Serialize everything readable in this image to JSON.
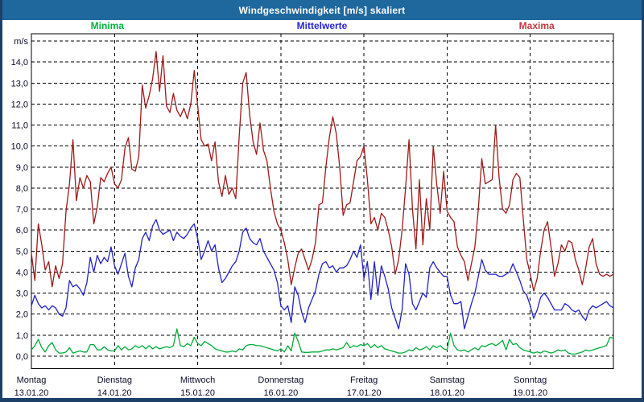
{
  "window": {
    "title": "Windgeschwindigkeit [m/s] skaliert"
  },
  "colors": {
    "titlebar_bg": "#1f689e",
    "window_border": "#1d4069",
    "plot_frame": "#000000",
    "grid": "#000000",
    "axis_text": "#0a0a28",
    "background": "#ffffff"
  },
  "legend": {
    "items": [
      {
        "label": "Minima",
        "color": "#00b33c"
      },
      {
        "label": "Mittelwerte",
        "color": "#2626d2"
      },
      {
        "label": "Maxima",
        "color": "#c23a46"
      }
    ]
  },
  "chart_data": {
    "type": "line",
    "title": "Windgeschwindigkeit [m/s] skaliert",
    "ylabel": "m/s",
    "grid": true,
    "legend_position": "top",
    "ylim": [
      -0.6,
      15.35
    ],
    "x_hours_total": 168,
    "y_axis": {
      "unit_label": "m/s",
      "grid_values": [
        0,
        1,
        2,
        3,
        4,
        5,
        6,
        7,
        8,
        9,
        10,
        11,
        12,
        13,
        14,
        15
      ],
      "ticks": [
        {
          "v": 0,
          "label": "0,0"
        },
        {
          "v": 1,
          "label": "1,0"
        },
        {
          "v": 2,
          "label": "2,0"
        },
        {
          "v": 3,
          "label": "3,0"
        },
        {
          "v": 4,
          "label": "4,0"
        },
        {
          "v": 5,
          "label": "5,0"
        },
        {
          "v": 6,
          "label": "6,0"
        },
        {
          "v": 7,
          "label": "7,0"
        },
        {
          "v": 8,
          "label": "8,0"
        },
        {
          "v": 9,
          "label": "9,0"
        },
        {
          "v": 10,
          "label": "10,0"
        },
        {
          "v": 11,
          "label": "11,0"
        },
        {
          "v": 12,
          "label": "12,0"
        },
        {
          "v": 13,
          "label": "13,0"
        },
        {
          "v": 14,
          "label": "14,0"
        }
      ]
    },
    "x_axis": {
      "days": [
        {
          "weekday": "Montag",
          "date": "13.01.20"
        },
        {
          "weekday": "Dienstag",
          "date": "14.01.20"
        },
        {
          "weekday": "Mittwoch",
          "date": "15.01.20"
        },
        {
          "weekday": "Donnerstag",
          "date": "16.01.20"
        },
        {
          "weekday": "Freitag",
          "date": "17.01.20"
        },
        {
          "weekday": "Samstag",
          "date": "18.01.20"
        },
        {
          "weekday": "Sonntag",
          "date": "19.01.20"
        }
      ]
    },
    "series": [
      {
        "name": "Maxima",
        "color": "#9e1a1a",
        "values": [
          4.9,
          3.6,
          6.3,
          5.3,
          4.1,
          4.5,
          3.3,
          4.3,
          3.7,
          4.4,
          6.9,
          8.2,
          10.3,
          7.4,
          8.5,
          8.0,
          8.6,
          8.3,
          6.3,
          7.1,
          8.5,
          8.3,
          8.7,
          9.0,
          8.2,
          8.0,
          8.4,
          9.9,
          10.4,
          8.9,
          8.8,
          9.5,
          12.9,
          11.8,
          12.4,
          13.2,
          14.5,
          12.6,
          14.3,
          11.9,
          11.6,
          12.5,
          11.7,
          11.4,
          11.8,
          11.3,
          12.0,
          13.6,
          11.9,
          10.3,
          10.0,
          10.1,
          9.3,
          10.2,
          8.3,
          7.6,
          8.6,
          7.7,
          8.0,
          7.5,
          10.5,
          13.0,
          13.5,
          11.5,
          10.2,
          9.6,
          11.1,
          9.8,
          9.3,
          8.0,
          6.9,
          6.3,
          6.0,
          5.4,
          4.6,
          3.4,
          4.2,
          4.9,
          5.1,
          4.6,
          4.1,
          4.6,
          5.4,
          7.2,
          7.3,
          9.0,
          10.4,
          11.4,
          10.6,
          9.0,
          6.7,
          7.2,
          7.3,
          8.3,
          9.3,
          9.5,
          10.0,
          8.4,
          6.3,
          6.6,
          6.0,
          6.8,
          6.6,
          6.0,
          5.2,
          3.9,
          4.6,
          6.0,
          8.0,
          10.3,
          7.0,
          5.1,
          8.4,
          5.3,
          7.5,
          6.0,
          10.0,
          8.2,
          6.8,
          8.8,
          6.9,
          6.6,
          6.4,
          5.2,
          4.8,
          4.5,
          3.6,
          4.4,
          5.2,
          7.0,
          9.4,
          8.2,
          8.3,
          8.4,
          11.0,
          8.5,
          7.0,
          6.8,
          7.2,
          8.4,
          8.7,
          8.5,
          6.5,
          4.6,
          3.9,
          3.1,
          3.7,
          5.0,
          6.0,
          6.4,
          5.2,
          3.8,
          4.4,
          5.3,
          5.0,
          5.5,
          5.4,
          4.6,
          4.1,
          3.4,
          4.2,
          5.2,
          5.6,
          4.4,
          3.9,
          3.8,
          3.9,
          3.8,
          3.9
        ]
      },
      {
        "name": "Mittelwerte",
        "color": "#2121c8",
        "values": [
          2.4,
          2.9,
          2.5,
          2.3,
          2.4,
          2.2,
          2.4,
          2.3,
          2.0,
          1.9,
          2.3,
          3.6,
          3.3,
          3.4,
          3.2,
          2.9,
          3.5,
          4.7,
          4.0,
          4.8,
          4.4,
          4.7,
          4.5,
          5.2,
          4.3,
          3.9,
          4.4,
          4.9,
          3.8,
          3.3,
          4.2,
          4.6,
          5.6,
          5.9,
          5.5,
          6.2,
          6.5,
          6.0,
          5.8,
          5.9,
          6.0,
          5.5,
          5.9,
          5.7,
          5.6,
          5.8,
          6.1,
          6.3,
          5.6,
          4.6,
          5.0,
          5.5,
          5.0,
          5.3,
          4.2,
          3.5,
          3.7,
          4.0,
          4.3,
          4.5,
          5.0,
          5.9,
          6.1,
          5.6,
          5.4,
          5.3,
          5.6,
          5.0,
          4.7,
          4.4,
          4.1,
          3.5,
          2.4,
          2.2,
          2.4,
          1.6,
          3.3,
          2.9,
          2.1,
          1.6,
          2.3,
          2.7,
          3.1,
          3.9,
          4.4,
          4.5,
          4.2,
          4.3,
          4.0,
          4.2,
          4.2,
          4.3,
          4.6,
          5.0,
          4.7,
          5.3,
          3.7,
          4.5,
          2.7,
          4.5,
          2.9,
          4.3,
          3.8,
          3.2,
          2.3,
          1.8,
          1.3,
          2.2,
          4.4,
          3.9,
          2.5,
          2.2,
          2.6,
          3.0,
          2.8,
          4.2,
          4.5,
          4.2,
          4.0,
          3.8,
          3.8,
          2.9,
          2.5,
          2.5,
          2.6,
          1.3,
          1.9,
          2.5,
          3.0,
          3.8,
          4.6,
          4.1,
          3.9,
          3.9,
          3.9,
          3.8,
          3.8,
          3.9,
          4.0,
          4.4,
          4.0,
          3.6,
          3.1,
          2.9,
          2.4,
          1.8,
          2.2,
          2.8,
          3.0,
          2.8,
          2.5,
          2.2,
          2.2,
          2.2,
          2.5,
          2.4,
          2.2,
          2.1,
          2.2,
          1.9,
          1.7,
          2.2,
          2.4,
          2.3,
          2.4,
          2.5,
          2.6,
          2.4,
          2.3
        ]
      },
      {
        "name": "Minima",
        "color": "#00ad39",
        "values": [
          0.3,
          0.5,
          0.8,
          0.4,
          0.2,
          0.5,
          0.65,
          0.3,
          0.15,
          0.15,
          0.2,
          0.4,
          0.15,
          0.2,
          0.25,
          0.2,
          0.2,
          0.55,
          0.55,
          0.3,
          0.3,
          0.45,
          0.3,
          0.25,
          0.25,
          0.5,
          0.3,
          0.45,
          0.3,
          0.35,
          0.5,
          0.4,
          0.5,
          0.35,
          0.5,
          0.35,
          0.45,
          0.35,
          0.4,
          0.45,
          0.4,
          0.5,
          1.3,
          0.5,
          0.45,
          0.6,
          0.5,
          0.9,
          0.6,
          0.5,
          0.7,
          0.6,
          0.5,
          0.35,
          0.3,
          0.25,
          0.2,
          0.2,
          0.25,
          0.2,
          0.35,
          0.3,
          0.5,
          0.55,
          0.55,
          0.5,
          0.5,
          0.45,
          0.4,
          0.35,
          0.3,
          0.25,
          0.35,
          0.2,
          0.5,
          0.25,
          1.1,
          0.7,
          0.2,
          0.18,
          0.18,
          0.2,
          0.2,
          0.2,
          0.25,
          0.3,
          0.3,
          0.35,
          0.3,
          0.35,
          0.4,
          0.65,
          0.4,
          0.5,
          0.45,
          0.55,
          0.5,
          0.6,
          0.4,
          0.55,
          0.4,
          0.5,
          0.35,
          0.3,
          0.25,
          0.2,
          0.15,
          0.15,
          0.2,
          0.3,
          0.25,
          0.4,
          0.3,
          0.35,
          0.45,
          0.3,
          0.5,
          0.4,
          0.5,
          0.35,
          0.3,
          1.1,
          0.5,
          0.3,
          0.25,
          0.3,
          0.2,
          0.3,
          0.4,
          0.3,
          0.5,
          0.45,
          0.55,
          0.6,
          0.5,
          0.6,
          0.75,
          0.3,
          0.8,
          0.55,
          0.6,
          0.4,
          0.3,
          0.25,
          0.2,
          0.15,
          0.2,
          0.15,
          0.25,
          0.2,
          0.15,
          0.2,
          0.3,
          0.25,
          0.3,
          0.15,
          0.1,
          0.1,
          0.15,
          0.2,
          0.3,
          0.25,
          0.3,
          0.35,
          0.4,
          0.45,
          0.5,
          0.9,
          0.85
        ]
      }
    ]
  }
}
